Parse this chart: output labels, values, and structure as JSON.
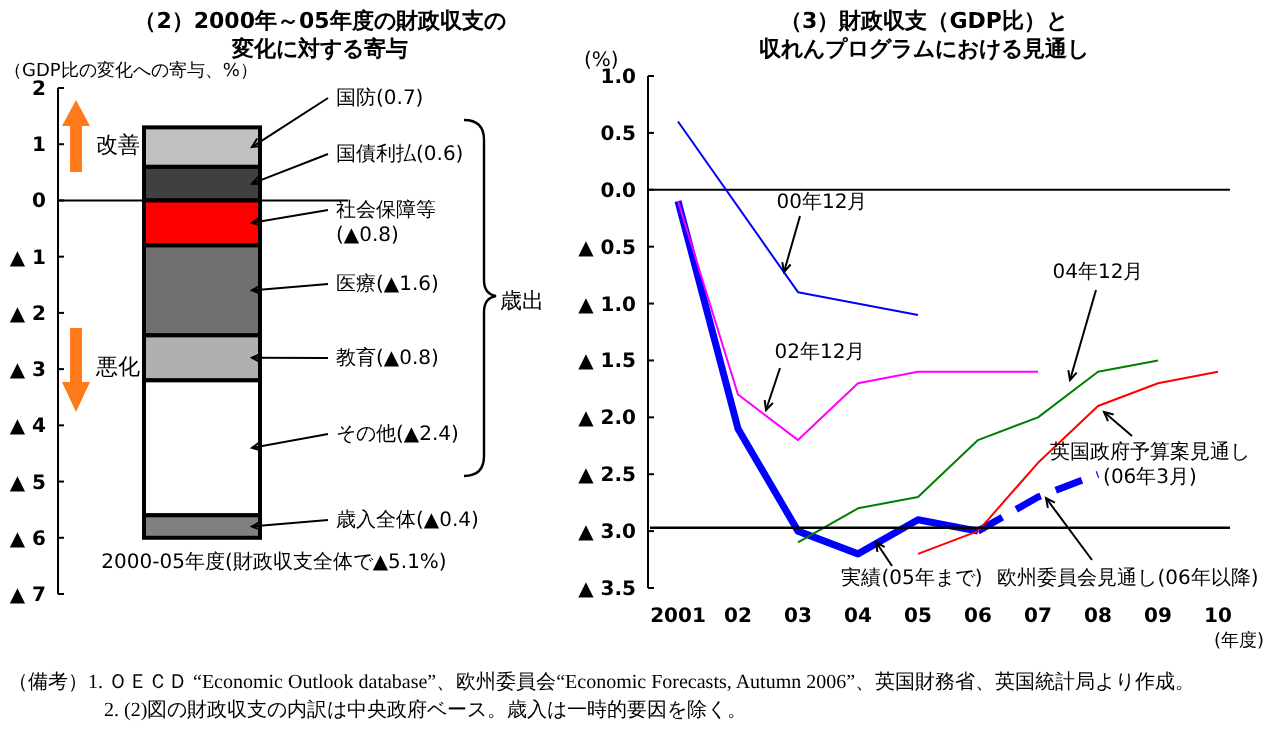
{
  "chart_data": [
    {
      "type": "bar",
      "stacked": true,
      "title": "（2）2000年～05年度の財政収支の変化に対する寄与",
      "legend": "right",
      "ylabel": "（GDP比の変化への寄与、%）",
      "categories": [
        "2000-05年度(財政収支全体で▲5.1%)"
      ],
      "series": [
        {
          "name": "国債利払(0.6)",
          "color": "#404040",
          "values": [
            0.6
          ]
        },
        {
          "name": "国防(0.7)",
          "color": "#c0c0c0",
          "values": [
            0.7
          ]
        },
        {
          "name": "社会保障等\n(▲0.8)",
          "color": "#ff0000",
          "values": [
            -0.8
          ]
        },
        {
          "name": "医療(▲1.6)",
          "color": "#707070",
          "values": [
            -1.6
          ]
        },
        {
          "name": "教育(▲0.8)",
          "color": "#b0b0b0",
          "values": [
            -0.8
          ]
        },
        {
          "name": "その他(▲2.4)",
          "color": "#ffffff",
          "values": [
            -2.4
          ]
        },
        {
          "name": "歳入全体(▲0.4)",
          "color": "#808080",
          "values": [
            -0.4
          ]
        }
      ],
      "ylim": [
        -7,
        2
      ],
      "yticks": [
        2,
        1,
        0,
        {
          "value": -1,
          "label": "▲ 1"
        },
        {
          "value": -2,
          "label": "▲ 2"
        },
        {
          "value": -3,
          "label": "▲ 3"
        },
        {
          "value": -4,
          "label": "▲ 4"
        },
        {
          "value": -5,
          "label": "▲ 5"
        },
        {
          "value": -6,
          "label": "▲ 6"
        },
        {
          "value": -7,
          "label": "▲ 7"
        }
      ],
      "annotations": [
        "改善",
        "悪化",
        "歳出"
      ]
    },
    {
      "type": "line",
      "title": "（3）財政収支（GDP比）と収れんプログラムにおける見通し",
      "ylabel": "(%)",
      "xlabel": "(年度)",
      "categories": [
        "2001",
        "02",
        "03",
        "04",
        "05",
        "06",
        "07",
        "08",
        "09",
        "10"
      ],
      "series": [
        {
          "name": "00年12月",
          "color": "#0000ff",
          "values": [
            0.6,
            null,
            -0.9,
            null,
            -1.1,
            null,
            null,
            null,
            null,
            null
          ]
        },
        {
          "name": "02年12月",
          "color": "#ff00ff",
          "values": [
            -0.1,
            -1.8,
            -2.2,
            -1.7,
            -1.6,
            -1.6,
            -1.6,
            null,
            null,
            null
          ]
        },
        {
          "name": "04年12月",
          "color": "#008000",
          "values": [
            null,
            null,
            -3.1,
            -2.8,
            -2.7,
            -2.2,
            -2.0,
            -1.6,
            -1.5,
            null
          ]
        },
        {
          "name": "英国政府予算案見通し\n(06年3月)",
          "color": "#ff0000",
          "values": [
            null,
            null,
            null,
            null,
            -3.2,
            -3.0,
            -2.4,
            -1.9,
            -1.7,
            -1.6
          ]
        },
        {
          "name": "実績(05年まで)",
          "color": "#0000ff",
          "values": [
            -0.1,
            -2.1,
            -3.0,
            -3.2,
            -2.9,
            -3.0,
            null,
            null,
            null,
            null
          ]
        },
        {
          "name": "欧州委員会見通し(06年以降)",
          "color": "#0000ff",
          "line_style": "dashed",
          "values": [
            null,
            null,
            null,
            null,
            null,
            -3.0,
            -2.7,
            -2.5,
            null,
            null
          ]
        }
      ],
      "ylim": [
        -3.5,
        1.0
      ],
      "yticks": [
        {
          "value": 1,
          "label": "1.0"
        },
        {
          "value": 0.5,
          "label": "0.5"
        },
        {
          "value": 0,
          "label": "0.0"
        },
        {
          "value": -0.5,
          "label": "▲ 0.5"
        },
        {
          "value": -1,
          "label": "▲ 1.0"
        },
        {
          "value": -1.5,
          "label": "▲ 1.5"
        },
        {
          "value": -2,
          "label": "▲ 2.0"
        },
        {
          "value": -2.5,
          "label": "▲ 2.5"
        },
        {
          "value": -3,
          "label": "▲ 3.0"
        },
        {
          "value": -3.5,
          "label": "▲ 3.5"
        }
      ],
      "ref_lines": [
        {
          "axis": "y",
          "value": -2.97,
          "color": "#000000"
        }
      ],
      "annotations": [
        "（備考）1. ＯＥＣＤ “Economic Outlook database”、欧州委員会“Economic Forecasts, Autumn 2006”、英国財務省、英国統計局より作成。",
        "2. (2)図の財政収支の内訳は中央政府ベース。歳入は一時的要因を除く。"
      ]
    }
  ]
}
